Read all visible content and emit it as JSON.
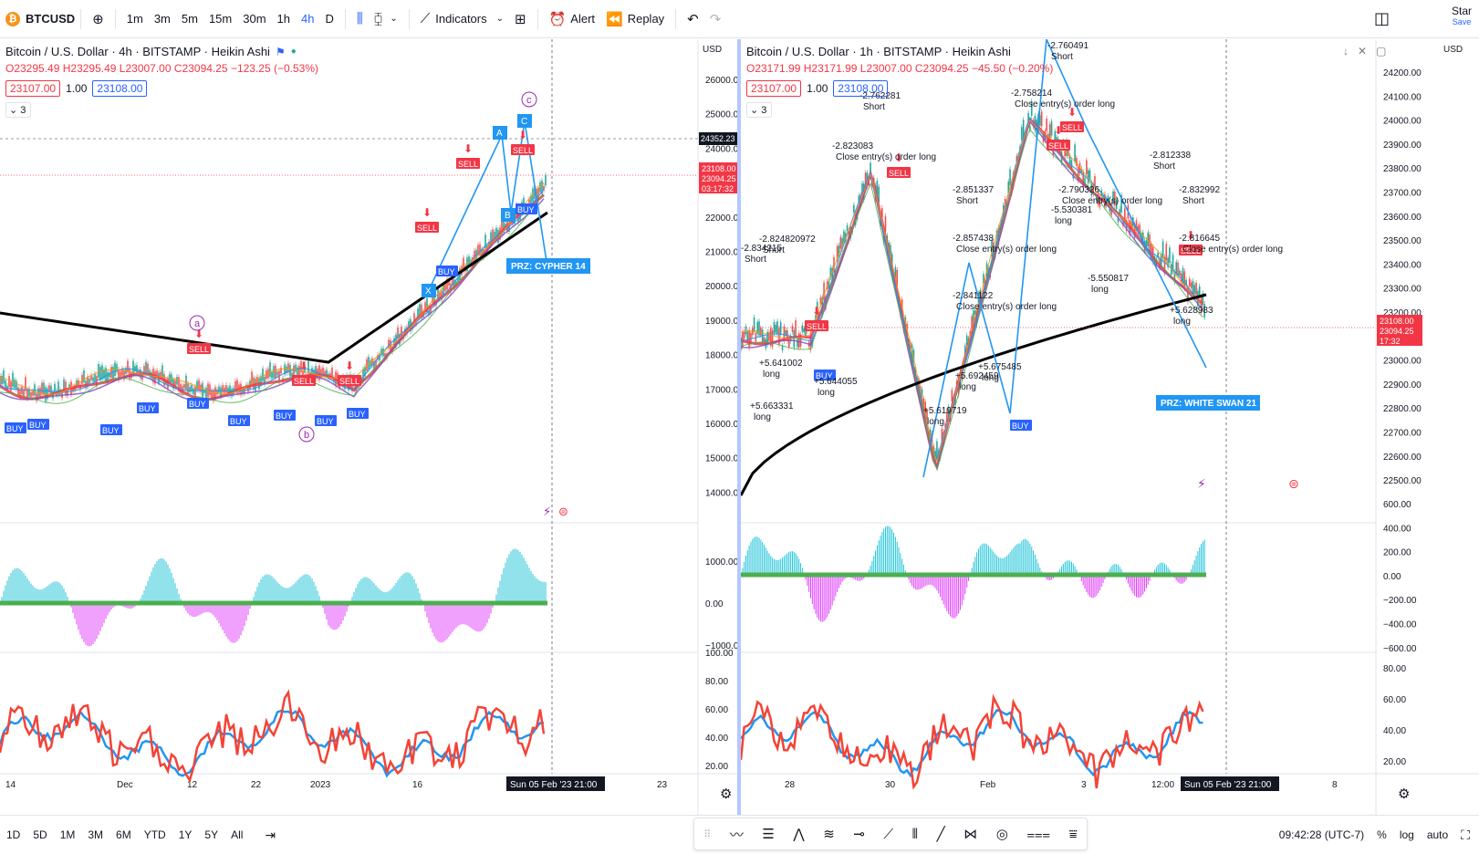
{
  "toolbar": {
    "symbol": "BTCUSD",
    "intervals": [
      "1m",
      "3m",
      "5m",
      "15m",
      "30m",
      "1h",
      "4h",
      "D"
    ],
    "active_interval": "4h",
    "indicators_label": "Indicators",
    "alert_label": "Alert",
    "replay_label": "Replay",
    "star_label": "Star",
    "save_label": "Save"
  },
  "left_chart": {
    "title": "Bitcoin / U.S. Dollar · 4h · BITSTAMP · Heikin Ashi",
    "ohlc_o": "O23295.49",
    "ohlc_h": "H23295.49",
    "ohlc_l": "L23007.00",
    "ohlc_c": "C23094.25",
    "ohlc_chg": "−123.25 (−0.53%)",
    "sell_price": "23107.00",
    "spread": "1.00",
    "buy_price": "23108.00",
    "indicator_count": "3",
    "currency": "USD",
    "price_ticks": [
      "26000.00",
      "25000.00",
      "24000.00",
      "23000.00",
      "22000.00",
      "21000.00",
      "20000.00",
      "19000.00",
      "18000.00",
      "17000.00",
      "16000.00",
      "15000.00",
      "14000.00"
    ],
    "tag_crosshair": "24352.23",
    "tag_price1": "23108.00",
    "tag_price2": "23094.25",
    "tag_timer": "03:17:32",
    "osc_ticks": [
      "1000.00",
      "0.00",
      "−1000.00"
    ],
    "rsi_ticks": [
      "100.00",
      "80.00",
      "60.00",
      "40.00",
      "20.00"
    ],
    "time_ticks": [
      "14",
      "Dec",
      "12",
      "22",
      "2023",
      "16",
      "23"
    ],
    "time_cursor": "Sun 05 Feb '23   21:00",
    "przs_label": "PRZ: CYPHER 14",
    "wave_labels": [
      "a",
      "b",
      "c"
    ],
    "pattern_labels": [
      "A",
      "B",
      "C",
      "X"
    ]
  },
  "right_chart": {
    "title": "Bitcoin / U.S. Dollar · 1h · BITSTAMP · Heikin Ashi",
    "ohlc_o": "O23171.99",
    "ohlc_h": "H23171.99",
    "ohlc_l": "L23007.00",
    "ohlc_c": "C23094.25",
    "ohlc_chg": "−45.50 (−0.20%)",
    "sell_price": "23107.00",
    "spread": "1.00",
    "buy_price": "23108.00",
    "indicator_count": "3",
    "currency": "USD",
    "price_ticks": [
      "24200.00",
      "24100.00",
      "24000.00",
      "23900.00",
      "23800.00",
      "23700.00",
      "23600.00",
      "23500.00",
      "23400.00",
      "23300.00",
      "23200.00",
      "23100.00",
      "23000.00",
      "22900.00",
      "22800.00",
      "22700.00",
      "22600.00",
      "22500.00"
    ],
    "tag_price1": "23108.00",
    "tag_price2": "23094.25",
    "tag_timer": "17:32",
    "osc_ticks": [
      "600.00",
      "400.00",
      "200.00",
      "0.00",
      "−200.00",
      "−400.00",
      "−600.00"
    ],
    "rsi_ticks": [
      "80.00",
      "60.00",
      "40.00",
      "20.00"
    ],
    "time_ticks": [
      "28",
      "30",
      "Feb",
      "3",
      "12:00",
      "8"
    ],
    "time_cursor": "Sun 05 Feb '23   21:00",
    "przs_label": "PRZ: WHITE SWAN 21",
    "annotations": [
      {
        "text": "-2.762281",
        "sub": "Short"
      },
      {
        "text": "-2.823083",
        "sub": "Close entry(s) order long"
      },
      {
        "text": "-2.851337",
        "sub": "Short"
      },
      {
        "text": "-2.857438",
        "sub": "Close entry(s) order long"
      },
      {
        "text": "-2.841122",
        "sub": "Close entry(s) order long"
      },
      {
        "text": "-2.812338",
        "sub": "Short"
      },
      {
        "text": "-2.832992",
        "sub": "Short"
      },
      {
        "text": "-2.816645",
        "sub": "Close entry(s) order long"
      },
      {
        "text": "-2.790326",
        "sub": "Close entry(s) order long"
      },
      {
        "text": "-2.758214",
        "sub": "Close entry(s) order long"
      },
      {
        "text": "-2.760491",
        "sub": "Short"
      },
      {
        "text": "-2.834215",
        "sub": "Short"
      },
      {
        "text": "-2.824820972",
        "sub": "Short"
      },
      {
        "text": "+5.641002",
        "sub": "long"
      },
      {
        "text": "+5.644055",
        "sub": "long"
      },
      {
        "text": "+5.663331",
        "sub": "long"
      },
      {
        "text": "+5.619719",
        "sub": "long"
      },
      {
        "text": "+5.692459",
        "sub": "long"
      },
      {
        "text": "+5.675485",
        "sub": "long"
      },
      {
        "text": "+5.628983",
        "sub": "long"
      },
      {
        "text": "-5.550817",
        "sub": "long"
      },
      {
        "text": "-5.530381",
        "sub": "long"
      }
    ]
  },
  "signals": {
    "sell": "SELL",
    "buy": "BUY"
  },
  "bottombar": {
    "ranges": [
      "1D",
      "5D",
      "1M",
      "3M",
      "6M",
      "YTD",
      "1Y",
      "5Y",
      "All"
    ],
    "clock": "09:42:28 (UTC-7)",
    "percent": "%",
    "log": "log",
    "auto": "auto"
  },
  "colors": {
    "sell": "#f23645",
    "buy": "#2962ff",
    "ema_red": "#f23645",
    "ema_black": "#000000",
    "rsi_blue": "#2196f3",
    "rsi_red": "#f44336",
    "osc_up": "#26c6da",
    "osc_down": "#e040fb",
    "osc_zero": "#4caf50"
  }
}
